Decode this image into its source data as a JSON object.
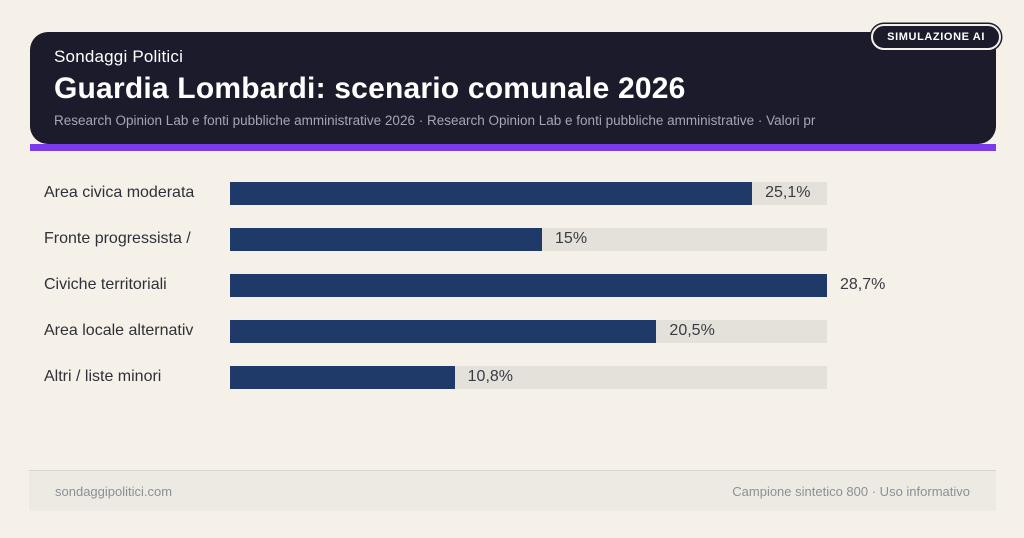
{
  "page": {
    "background_color": "#f5f1e9"
  },
  "badge": {
    "label": "SIMULAZIONE AI"
  },
  "header": {
    "eyebrow": "Sondaggi Politici",
    "title": "Guardia Lombardi: scenario comunale 2026",
    "subtitle": "Research Opinion Lab e fonti pubbliche amministrative 2026 · Research Opinion Lab e fonti pubbliche amministrative · Valori pr",
    "card_color": "#1b1b2b",
    "accent_color": "#7c3aed"
  },
  "chart_data": {
    "type": "bar",
    "orientation": "horizontal",
    "title": "Guardia Lombardi: scenario comunale 2026",
    "categories": [
      "Area civica moderata",
      "Fronte progressista /",
      "Civiche territoriali",
      "Area locale alternativ",
      "Altri / liste minori"
    ],
    "values": [
      25.1,
      15,
      28.7,
      20.5,
      10.8
    ],
    "value_labels": [
      "25,1%",
      "15%",
      "28,7%",
      "20,5%",
      "10,8%"
    ],
    "axis_max": 28.7,
    "unit": "%",
    "bar_color": "#1f3a68",
    "track_color": "#e4e1da",
    "grid": false,
    "legend": false
  },
  "footer": {
    "left_text": "sondaggipolitici.com",
    "right_text": "Campione sintetico 800 · Uso informativo"
  }
}
